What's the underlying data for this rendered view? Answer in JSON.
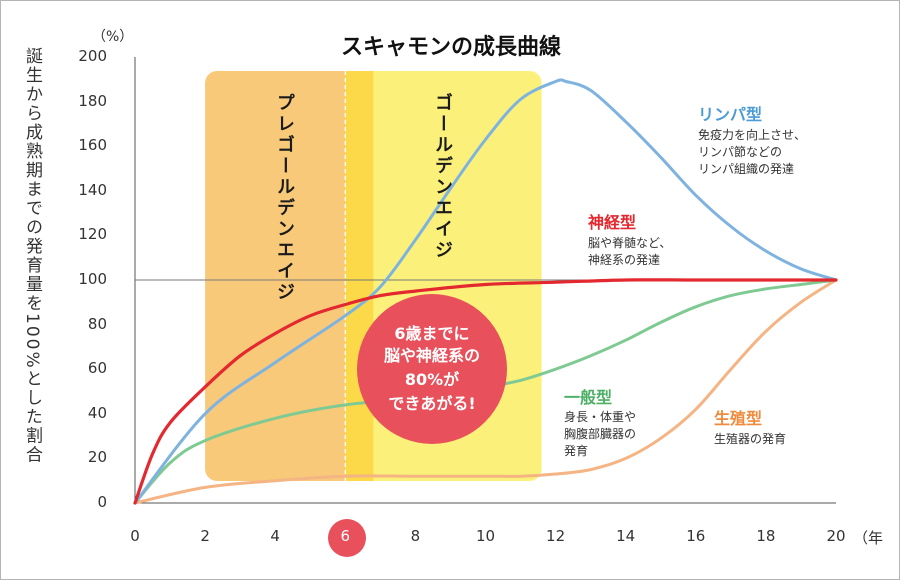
{
  "chart_data": {
    "type": "line",
    "title": "スキャモンの成長曲線",
    "y_unit": "（%）",
    "x_unit": "（年",
    "ylabel": "誕生から成熟期までの発育量を100%とした割合",
    "xlim": [
      0,
      20
    ],
    "ylim": [
      0,
      200
    ],
    "x_ticks": [
      "0",
      "2",
      "4",
      "6",
      "8",
      "10",
      "12",
      "14",
      "16",
      "18",
      "20"
    ],
    "y_ticks": [
      "200",
      "180",
      "160",
      "140",
      "120",
      "100",
      "80",
      "60",
      "40",
      "20",
      "0"
    ],
    "highlighted_x_tick": "6",
    "reference_line_y": 100,
    "bands": [
      {
        "label": "プレゴールデンエイジ",
        "x_range": [
          2,
          6.8
        ],
        "color": "#f9c97a"
      },
      {
        "label": "ゴールデンエイジ",
        "x_range": [
          6,
          11.6
        ],
        "color": "#fbf17a"
      }
    ],
    "divider_x": 6,
    "series": [
      {
        "name": "リンパ型",
        "color": "#7fb3df",
        "description": [
          "免疫力を向上させ、",
          "リンパ節などの",
          "リンパ組織の発達"
        ],
        "x": [
          0,
          2,
          4,
          6,
          7,
          8,
          9,
          10,
          11,
          12,
          12.3,
          13,
          14,
          15,
          16,
          17,
          18,
          19,
          20
        ],
        "y": [
          0,
          40,
          63,
          84,
          97,
          118,
          141,
          163,
          181,
          189,
          189,
          185,
          171,
          155,
          138,
          124,
          113,
          105,
          100
        ]
      },
      {
        "name": "神経型",
        "color": "#e3282f",
        "description": [
          "脳や脊髄など、",
          "神経系の発達"
        ],
        "x": [
          0,
          0.5,
          1,
          2,
          3,
          4,
          5,
          6,
          7,
          8,
          10,
          12,
          14,
          16,
          18,
          20
        ],
        "y": [
          0,
          22,
          36,
          52,
          66,
          76,
          84,
          89,
          93,
          95,
          98,
          99,
          100,
          100,
          100,
          100
        ]
      },
      {
        "name": "一般型",
        "color": "#7fca92",
        "description": [
          "身長・体重や",
          "胸腹部臓器の",
          "発育"
        ],
        "x": [
          0,
          1,
          2,
          4,
          6,
          8,
          10,
          11,
          12,
          13,
          14,
          15,
          16,
          17,
          18,
          19,
          20
        ],
        "y": [
          0,
          18,
          28,
          38,
          44,
          47,
          52,
          55,
          60,
          66,
          73,
          81,
          88,
          93,
          96,
          98,
          100
        ]
      },
      {
        "name": "生殖型",
        "color": "#f4b483",
        "description": [
          "生殖器の発育"
        ],
        "x": [
          0,
          2,
          4,
          6,
          8,
          10,
          11,
          12,
          13,
          14,
          15,
          16,
          17,
          18,
          19,
          20
        ],
        "y": [
          0,
          7,
          10,
          12,
          12,
          12,
          12,
          13,
          15,
          20,
          29,
          42,
          60,
          77,
          90,
          100
        ]
      }
    ],
    "callout": [
      "6歳までに",
      "脳や神経系の",
      "80%が",
      "できあがる!"
    ]
  }
}
